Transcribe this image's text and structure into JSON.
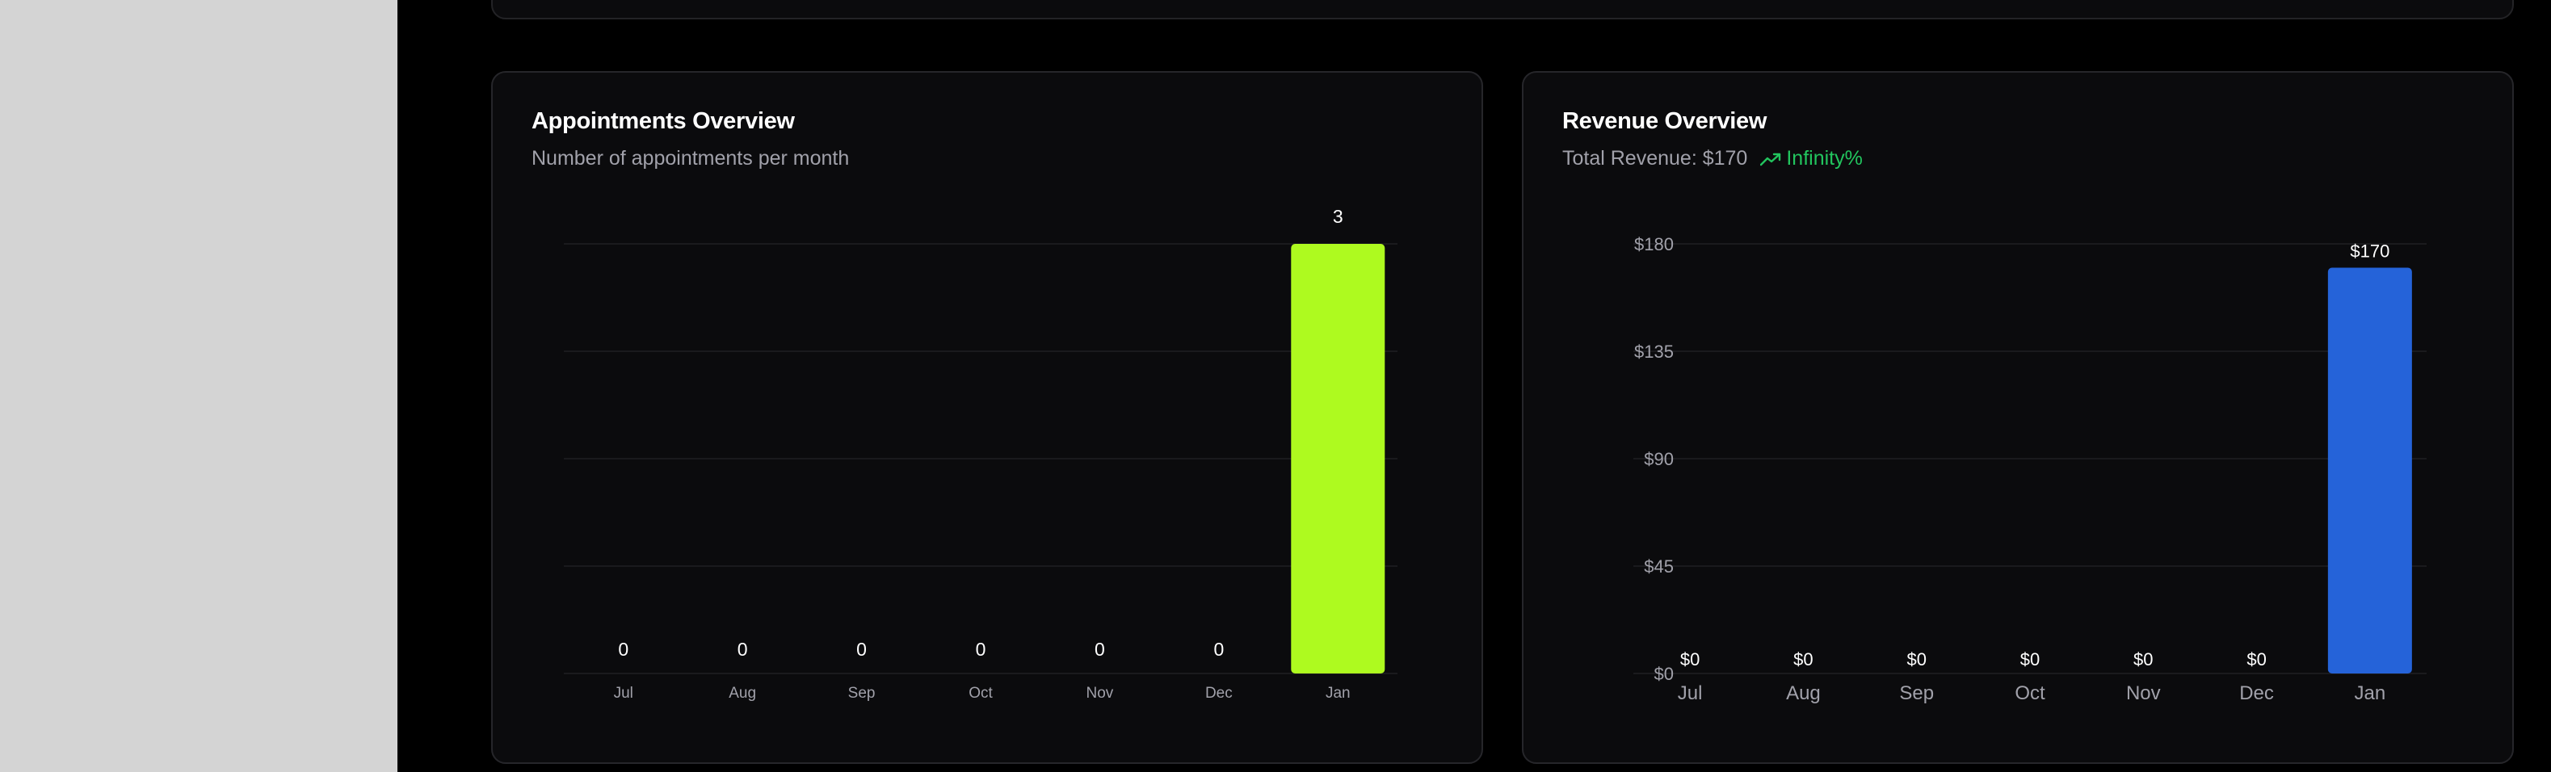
{
  "appointments": {
    "title": "Appointments Overview",
    "subtitle": "Number of appointments per month"
  },
  "revenue": {
    "title": "Revenue Overview",
    "total_label": "Total Revenue: $170",
    "trend_value": "Infinity%",
    "trend_icon": "trending-up-icon"
  },
  "colors": {
    "appointments_bar": "#aefa1f",
    "revenue_bar": "#2563d9",
    "trend": "#22c55e"
  },
  "chart_data": [
    {
      "type": "bar",
      "title": "Appointments Overview",
      "subtitle": "Number of appointments per month",
      "categories": [
        "Jul",
        "Aug",
        "Sep",
        "Oct",
        "Nov",
        "Dec",
        "Jan"
      ],
      "values": [
        0,
        0,
        0,
        0,
        0,
        0,
        3
      ],
      "data_labels": [
        "0",
        "0",
        "0",
        "0",
        "0",
        "0",
        "3"
      ],
      "ylim": [
        0,
        3
      ],
      "y_ticks": [],
      "grid": true
    },
    {
      "type": "bar",
      "title": "Revenue Overview",
      "subtitle": "Total Revenue: $170",
      "categories": [
        "Jul",
        "Aug",
        "Sep",
        "Oct",
        "Nov",
        "Dec",
        "Jan"
      ],
      "values": [
        0,
        0,
        0,
        0,
        0,
        0,
        170
      ],
      "data_labels": [
        "$0",
        "$0",
        "$0",
        "$0",
        "$0",
        "$0",
        "$170"
      ],
      "ylim": [
        0,
        180
      ],
      "y_ticks": [
        0,
        45,
        90,
        135,
        180
      ],
      "y_tick_labels": [
        "$0",
        "$45",
        "$90",
        "$135",
        "$180"
      ],
      "grid": true
    }
  ]
}
